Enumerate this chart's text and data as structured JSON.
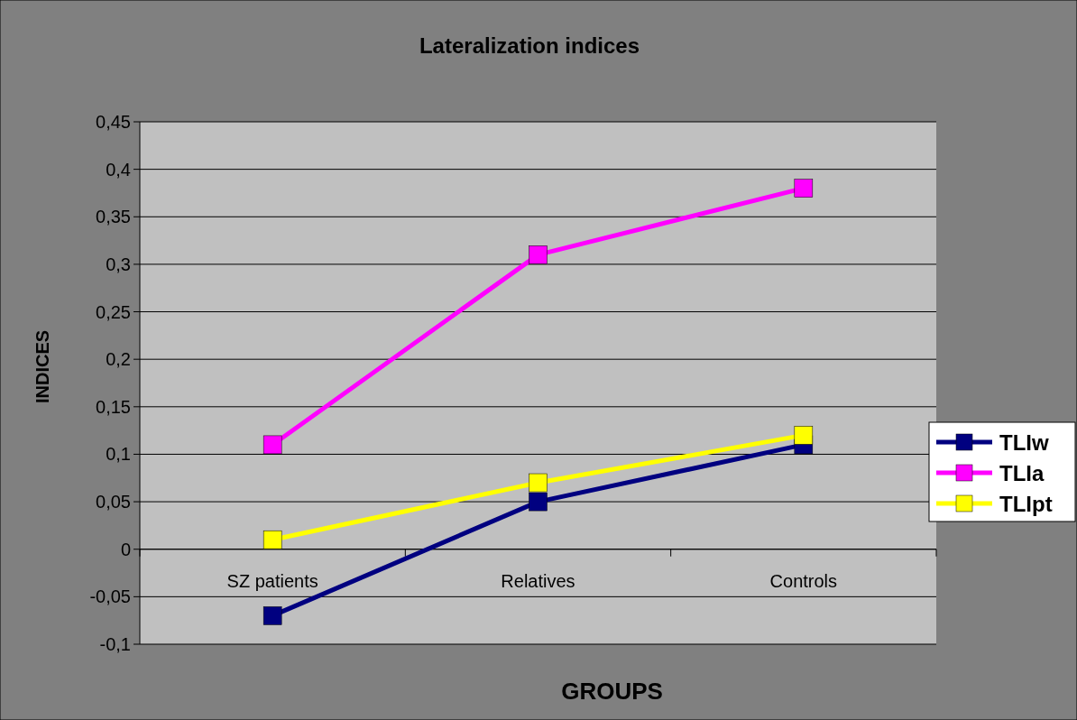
{
  "chart_data": {
    "type": "line",
    "title": "Lateralization indices",
    "xlabel": "GROUPS",
    "ylabel": "INDICES",
    "categories": [
      "SZ patients",
      "Relatives",
      "Controls"
    ],
    "series": [
      {
        "name": "TLIw",
        "color": "#000080",
        "values": [
          -0.07,
          0.05,
          0.11
        ]
      },
      {
        "name": "TLIa",
        "color": "#ff00ff",
        "values": [
          0.11,
          0.31,
          0.38
        ]
      },
      {
        "name": "TLIpt",
        "color": "#ffff00",
        "values": [
          0.01,
          0.07,
          0.12
        ]
      }
    ],
    "ylim": [
      -0.1,
      0.45
    ],
    "yticks": [
      {
        "value": -0.1,
        "label": "-0,1"
      },
      {
        "value": -0.05,
        "label": "-0,05"
      },
      {
        "value": 0,
        "label": "0"
      },
      {
        "value": 0.05,
        "label": "0,05"
      },
      {
        "value": 0.1,
        "label": "0,1"
      },
      {
        "value": 0.15,
        "label": "0,15"
      },
      {
        "value": 0.2,
        "label": "0,2"
      },
      {
        "value": 0.25,
        "label": "0,25"
      },
      {
        "value": 0.3,
        "label": "0,3"
      },
      {
        "value": 0.35,
        "label": "0,35"
      },
      {
        "value": 0.4,
        "label": "0,4"
      },
      {
        "value": 0.45,
        "label": "0,45"
      }
    ],
    "grid": "y",
    "legend": "right",
    "marker": "square"
  }
}
